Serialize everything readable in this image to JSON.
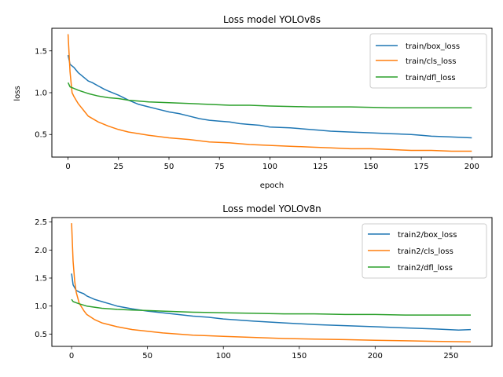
{
  "chart_data": [
    {
      "type": "line",
      "title": "Loss model YOLOv8s",
      "xlabel": "epoch",
      "ylabel": "loss",
      "xlim": [
        -8,
        210
      ],
      "ylim": [
        0.23,
        1.77
      ],
      "xticks": [
        0,
        25,
        50,
        75,
        100,
        125,
        150,
        175,
        200
      ],
      "xtick_labels": [
        "0",
        "25",
        "50",
        "75",
        "100",
        "125",
        "150",
        "175",
        "200"
      ],
      "yticks": [
        0.5,
        1.0,
        1.5
      ],
      "ytick_labels": [
        "0.5",
        "1.0",
        "1.5"
      ],
      "legend": "top-right",
      "grid": false,
      "series": [
        {
          "name": "train/box_loss",
          "color": "#1f77b4",
          "x": [
            0,
            1,
            3,
            5,
            8,
            10,
            12,
            15,
            18,
            20,
            25,
            30,
            35,
            40,
            45,
            50,
            55,
            60,
            65,
            70,
            75,
            80,
            85,
            90,
            95,
            100,
            110,
            120,
            125,
            130,
            140,
            150,
            160,
            170,
            175,
            180,
            190,
            200
          ],
          "y": [
            1.45,
            1.34,
            1.3,
            1.24,
            1.18,
            1.14,
            1.12,
            1.08,
            1.04,
            1.02,
            0.97,
            0.91,
            0.86,
            0.83,
            0.8,
            0.77,
            0.75,
            0.72,
            0.69,
            0.67,
            0.66,
            0.65,
            0.63,
            0.62,
            0.61,
            0.59,
            0.58,
            0.56,
            0.55,
            0.54,
            0.53,
            0.52,
            0.51,
            0.5,
            0.49,
            0.48,
            0.47,
            0.46
          ]
        },
        {
          "name": "train/cls_loss",
          "color": "#ff7f0e",
          "x": [
            0,
            1,
            2,
            3,
            5,
            8,
            10,
            15,
            20,
            25,
            30,
            40,
            50,
            60,
            70,
            80,
            90,
            100,
            110,
            120,
            130,
            140,
            150,
            160,
            170,
            180,
            190,
            200
          ],
          "y": [
            1.7,
            1.25,
            1.0,
            0.95,
            0.87,
            0.78,
            0.72,
            0.65,
            0.6,
            0.56,
            0.53,
            0.49,
            0.46,
            0.44,
            0.41,
            0.4,
            0.38,
            0.37,
            0.36,
            0.35,
            0.34,
            0.33,
            0.33,
            0.32,
            0.31,
            0.31,
            0.3,
            0.3
          ]
        },
        {
          "name": "train/dfl_loss",
          "color": "#2ca02c",
          "x": [
            0,
            1,
            3,
            5,
            10,
            15,
            20,
            25,
            30,
            40,
            50,
            60,
            70,
            80,
            90,
            100,
            120,
            140,
            160,
            180,
            200
          ],
          "y": [
            1.12,
            1.07,
            1.05,
            1.03,
            0.99,
            0.96,
            0.94,
            0.93,
            0.91,
            0.89,
            0.88,
            0.87,
            0.86,
            0.85,
            0.85,
            0.84,
            0.83,
            0.83,
            0.82,
            0.82,
            0.82
          ]
        }
      ]
    },
    {
      "type": "line",
      "title": "Loss model YOLOv8n",
      "xlabel": "",
      "ylabel": "",
      "xlim": [
        -13,
        277
      ],
      "ylim": [
        0.28,
        2.58
      ],
      "xticks": [
        0,
        50,
        100,
        150,
        200,
        250
      ],
      "xtick_labels": [
        "0",
        "50",
        "100",
        "150",
        "200",
        "250"
      ],
      "yticks": [
        0.5,
        1.0,
        1.5,
        2.0,
        2.5
      ],
      "ytick_labels": [
        "0.5",
        "1.0",
        "1.5",
        "2.0",
        "2.5"
      ],
      "legend": "top-right",
      "grid": false,
      "series": [
        {
          "name": "train2/box_loss",
          "color": "#1f77b4",
          "x": [
            0,
            1,
            3,
            5,
            8,
            10,
            15,
            20,
            25,
            30,
            40,
            50,
            60,
            70,
            80,
            90,
            100,
            120,
            140,
            160,
            180,
            200,
            220,
            240,
            255,
            263
          ],
          "y": [
            1.58,
            1.38,
            1.28,
            1.25,
            1.22,
            1.18,
            1.12,
            1.08,
            1.04,
            1.0,
            0.95,
            0.91,
            0.88,
            0.85,
            0.82,
            0.8,
            0.77,
            0.73,
            0.7,
            0.67,
            0.65,
            0.63,
            0.61,
            0.59,
            0.57,
            0.58
          ]
        },
        {
          "name": "train2/cls_loss",
          "color": "#ff7f0e",
          "x": [
            0,
            1,
            2,
            3,
            5,
            8,
            10,
            15,
            20,
            30,
            40,
            50,
            60,
            80,
            100,
            120,
            140,
            160,
            180,
            200,
            220,
            240,
            263
          ],
          "y": [
            2.48,
            1.8,
            1.45,
            1.25,
            1.05,
            0.92,
            0.85,
            0.76,
            0.7,
            0.63,
            0.58,
            0.55,
            0.52,
            0.48,
            0.46,
            0.44,
            0.42,
            0.41,
            0.4,
            0.39,
            0.38,
            0.37,
            0.36
          ]
        },
        {
          "name": "train2/dfl_loss",
          "color": "#2ca02c",
          "x": [
            0,
            1,
            3,
            5,
            10,
            15,
            20,
            30,
            40,
            50,
            60,
            80,
            100,
            120,
            140,
            160,
            180,
            200,
            220,
            240,
            263
          ],
          "y": [
            1.12,
            1.08,
            1.06,
            1.04,
            1.0,
            0.98,
            0.96,
            0.94,
            0.93,
            0.92,
            0.91,
            0.89,
            0.88,
            0.87,
            0.86,
            0.86,
            0.85,
            0.85,
            0.84,
            0.84,
            0.84
          ]
        }
      ]
    }
  ]
}
